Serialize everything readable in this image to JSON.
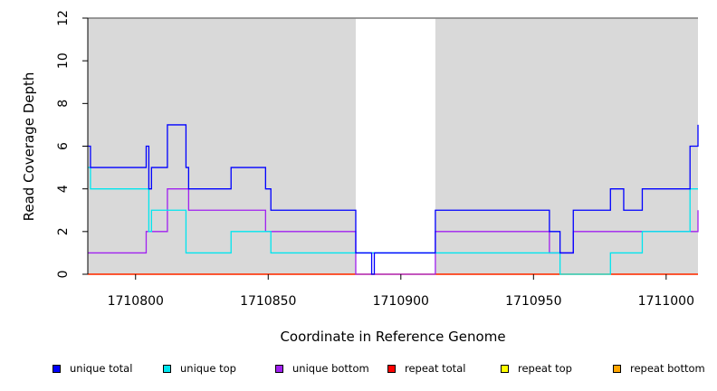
{
  "chart_data": {
    "type": "line",
    "xlabel": "Coordinate in Reference Genome",
    "ylabel": "Read Coverage Depth",
    "xlim": [
      1710782,
      1711012
    ],
    "ylim": [
      0,
      12
    ],
    "x_ticks": [
      1710800,
      1710850,
      1710900,
      1710950,
      1711000
    ],
    "y_ticks": [
      0,
      2,
      4,
      6,
      8,
      10,
      12
    ],
    "shaded_regions": [
      {
        "from": 1710782,
        "to": 1710883,
        "color": "#d9d9d9"
      },
      {
        "from": 1710913,
        "to": 1711012,
        "color": "#d9d9d9"
      }
    ],
    "series": [
      {
        "name": "unique total",
        "color": "#0000ff",
        "points": [
          [
            1710782,
            6
          ],
          [
            1710783,
            5
          ],
          [
            1710804,
            6
          ],
          [
            1710805,
            4
          ],
          [
            1710806,
            5
          ],
          [
            1710812,
            7
          ],
          [
            1710819,
            5
          ],
          [
            1710820,
            4
          ],
          [
            1710836,
            5
          ],
          [
            1710849,
            4
          ],
          [
            1710851,
            3
          ],
          [
            1710883,
            1
          ],
          [
            1710889,
            0
          ],
          [
            1710890,
            1
          ],
          [
            1710913,
            3
          ],
          [
            1710956,
            2
          ],
          [
            1710960,
            1
          ],
          [
            1710965,
            3
          ],
          [
            1710979,
            4
          ],
          [
            1710984,
            3
          ],
          [
            1710991,
            4
          ],
          [
            1711009,
            6
          ],
          [
            1711012,
            7
          ]
        ]
      },
      {
        "name": "unique top",
        "color": "#00e5ee",
        "points": [
          [
            1710782,
            5
          ],
          [
            1710783,
            4
          ],
          [
            1710805,
            2
          ],
          [
            1710806,
            3
          ],
          [
            1710819,
            1
          ],
          [
            1710836,
            2
          ],
          [
            1710851,
            1
          ],
          [
            1710913,
            1
          ],
          [
            1710960,
            0
          ],
          [
            1710979,
            1
          ],
          [
            1710991,
            2
          ],
          [
            1711009,
            4
          ]
        ]
      },
      {
        "name": "unique bottom",
        "color": "#a020f0",
        "points": [
          [
            1710782,
            1
          ],
          [
            1710804,
            2
          ],
          [
            1710812,
            4
          ],
          [
            1710820,
            3
          ],
          [
            1710849,
            2
          ],
          [
            1710883,
            0
          ],
          [
            1710913,
            2
          ],
          [
            1710956,
            1
          ],
          [
            1710965,
            2
          ],
          [
            1711012,
            3
          ]
        ]
      },
      {
        "name": "repeat total",
        "color": "#ff0000",
        "points": [
          [
            1710782,
            0
          ],
          [
            1711012,
            0
          ]
        ]
      },
      {
        "name": "repeat top",
        "color": "#ffff00",
        "points": [
          [
            1710782,
            0
          ],
          [
            1711012,
            0
          ]
        ]
      },
      {
        "name": "repeat bottom",
        "color": "#ffa500",
        "points": [
          [
            1710782,
            0
          ],
          [
            1711012,
            0
          ]
        ]
      }
    ],
    "legend_placement": "bottom"
  }
}
